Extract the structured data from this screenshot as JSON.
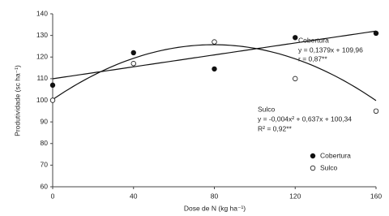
{
  "chart_data": {
    "type": "scatter",
    "x_label": "Dose de N (kg ha⁻¹)",
    "y_label": "Produtividade (sc ha⁻¹)",
    "x": [
      0,
      40,
      80,
      120,
      160
    ],
    "series": [
      {
        "name": "Cobertura",
        "color": "#111111",
        "marker": "filled",
        "values": [
          107,
          122,
          114.5,
          129,
          131
        ],
        "fit": {
          "b": 0.1379,
          "c": 109.96
        }
      },
      {
        "name": "Sulco",
        "color": "#111111",
        "marker": "open",
        "values": [
          100,
          117,
          127,
          110,
          95
        ],
        "fit": {
          "a": -0.004,
          "b": 0.637,
          "c": 100.34
        }
      }
    ],
    "annotations": [
      "Cobertura",
      "y = 0,1379x + 109,96",
      "r = 0,87**",
      "Sulco",
      "y = -0,004x² + 0,637x + 100,34",
      "R² = 0,92**"
    ],
    "xlim": [
      0,
      160
    ],
    "xticks": [
      0,
      40,
      80,
      120,
      160
    ],
    "ylim": [
      60,
      140
    ],
    "yticks": [
      60,
      70,
      80,
      90,
      100,
      110,
      120,
      130,
      140
    ],
    "grid": false,
    "legend": "lower-right"
  }
}
